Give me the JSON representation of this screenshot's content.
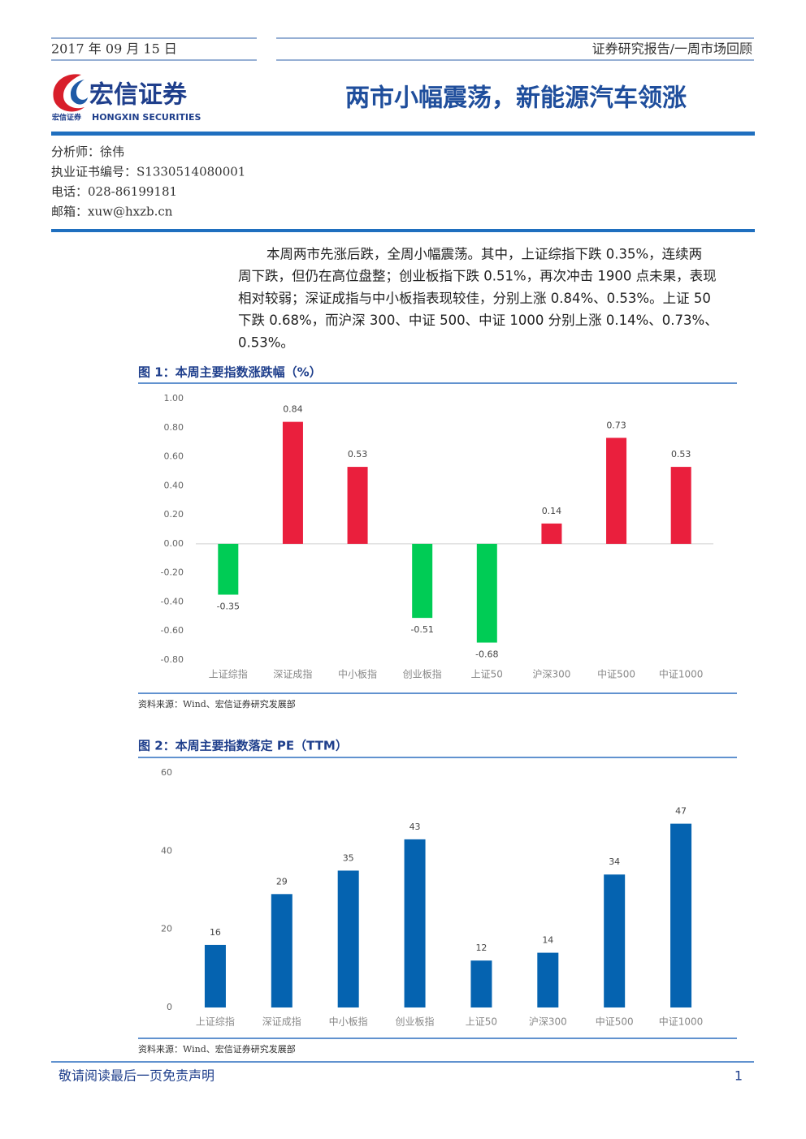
{
  "header": {
    "date": "2017 年 09 月 15 日",
    "report_type": "证券研究报告/一周市场回顾",
    "logo_name": "宏信证券",
    "logo_small": "宏信证券",
    "logo_en": "HONGXIN SECURITIES",
    "title": "两市小幅震荡，新能源汽车领涨"
  },
  "analyst": [
    "分析师：徐伟",
    "执业证书编号：S1330514080001",
    "电话：028-86199181",
    "邮箱：xuw@hxzb.cn"
  ],
  "body": [
    "本周两市先涨后跌，全周小幅震荡。其中，上证综指下跌 0.35%，连续两",
    "周下跌，但仍在高位盘整；创业板指下跌 0.51%，再次冲击 1900 点未果，表现",
    "相对较弱；深证成指与中小板指表现较佳，分别上涨 0.84%、0.53%。上证 50",
    "下跌 0.68%，而沪深 300、中证 500、中证 1000 分别上涨 0.14%、0.73%、",
    "0.53%。"
  ],
  "chart_data": [
    {
      "type": "bar",
      "title": "图 1：本周主要指数涨跌幅（%）",
      "source": "资料来源：Wind、宏信证券研究发展部",
      "categories": [
        "上证综指",
        "深证成指",
        "中小板指",
        "创业板指",
        "上证50",
        "沪深300",
        "中证500",
        "中证1000"
      ],
      "values": [
        -0.35,
        0.84,
        0.53,
        -0.51,
        -0.68,
        0.14,
        0.73,
        0.53
      ],
      "positive_color": "#ea1f3d",
      "negative_color": "#00cc55",
      "ylim": [
        -0.8,
        1.0
      ],
      "yticks": [
        {
          "value": -0.8,
          "label": "-0.80"
        },
        {
          "value": -0.6,
          "label": "-0.60"
        },
        {
          "value": -0.4,
          "label": "-0.40"
        },
        {
          "value": -0.2,
          "label": "-0.20"
        },
        {
          "value": 0,
          "label": "0.00"
        },
        {
          "value": 0.2,
          "label": "0.20"
        },
        {
          "value": 0.4,
          "label": "0.40"
        },
        {
          "value": 0.6,
          "label": "0.60"
        },
        {
          "value": 0.8,
          "label": "0.80"
        },
        {
          "value": 1.0,
          "label": "1.00"
        }
      ],
      "zero_line": true
    },
    {
      "type": "bar",
      "title": "图 2：本周主要指数落定 PE（TTM）",
      "source": "资料来源：Wind、宏信证券研究发展部",
      "categories": [
        "上证综指",
        "深证成指",
        "中小板指",
        "创业板指",
        "上证50",
        "沪深300",
        "中证500",
        "中证1000"
      ],
      "values": [
        16,
        29,
        35,
        43,
        12,
        14,
        34,
        47
      ],
      "color": "#0563b0",
      "ylim": [
        0,
        60
      ],
      "yticks": [
        0,
        20,
        40,
        60
      ],
      "zero_line": false
    }
  ],
  "footer": {
    "disclaimer": "敬请阅读最后一页免责声明",
    "page": "1"
  }
}
